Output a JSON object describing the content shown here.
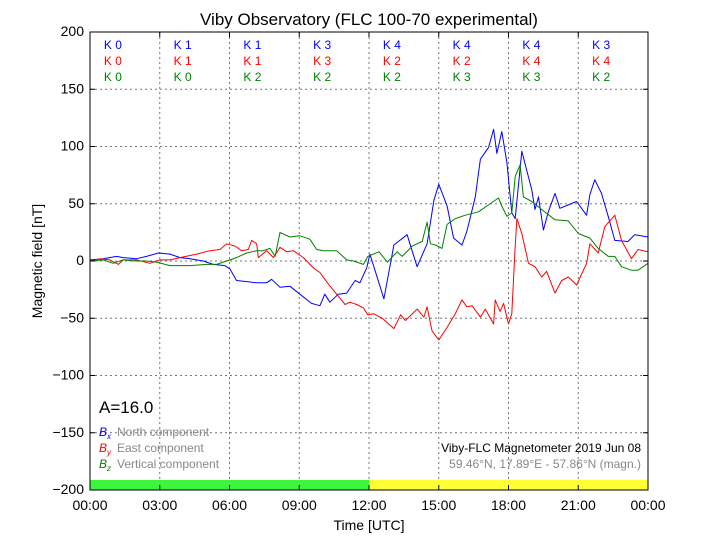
{
  "chart_data": {
    "type": "line",
    "title": "Viby Observatory (FLC 100-70 experimental)",
    "xlabel": "Time [UTC]",
    "ylabel": "Magnetic field [nT]",
    "xlim": [
      0,
      24
    ],
    "ylim": [
      -200,
      200
    ],
    "grid": true,
    "x_ticks": [
      0,
      3,
      6,
      9,
      12,
      15,
      18,
      21,
      24
    ],
    "x_tick_labels": [
      "00:00",
      "03:00",
      "06:00",
      "09:00",
      "12:00",
      "15:00",
      "18:00",
      "21:00",
      "00:00"
    ],
    "y_ticks": [
      -200,
      -150,
      -100,
      -50,
      0,
      50,
      100,
      150,
      200
    ],
    "y_tick_labels": [
      "−200",
      "−150",
      "−100",
      "−50",
      "0",
      "50",
      "100",
      "150",
      "200"
    ],
    "a_index": "A=16.0",
    "k_indices": {
      "north": [
        "K 0",
        "K 1",
        "K 1",
        "K 3",
        "K 4",
        "K 4",
        "K 4",
        "K 3"
      ],
      "east": [
        "K 0",
        "K 1",
        "K 1",
        "K 3",
        "K 2",
        "K 2",
        "K 4",
        "K 4"
      ],
      "vertical": [
        "K 0",
        "K 0",
        "K 2",
        "K 2",
        "K 2",
        "K 3",
        "K 3",
        "K 2"
      ]
    },
    "activity_bar": [
      {
        "from": 0,
        "to": 12,
        "color": "#3cf53c"
      },
      {
        "from": 12,
        "to": 24,
        "color": "#ffff33"
      }
    ],
    "legend": {
      "placement": "bottom-left",
      "entries": [
        {
          "symbol": "B",
          "sub": "x",
          "label": "North component"
        },
        {
          "symbol": "B",
          "sub": "y",
          "label": "East component"
        },
        {
          "symbol": "B",
          "sub": "z",
          "label": "Vertical component"
        }
      ]
    },
    "info": {
      "line1": "Viby-FLC Magnetometer 2019 Jun 08",
      "line2": "59.46°N, 17.89°E - 57.86°N (magn.)"
    },
    "series": [
      {
        "name": "North component",
        "color": "#0000ff",
        "points": [
          [
            0,
            1
          ],
          [
            0.57,
            2
          ],
          [
            1.15,
            4
          ],
          [
            1.43,
            3
          ],
          [
            2.0,
            2
          ],
          [
            2.43,
            4
          ],
          [
            2.94,
            7
          ],
          [
            3.44,
            6
          ],
          [
            3.87,
            3
          ],
          [
            4.3,
            2
          ],
          [
            4.87,
            0
          ],
          [
            5.3,
            -3
          ],
          [
            5.8,
            -4
          ],
          [
            6.02,
            -7
          ],
          [
            6.3,
            -17
          ],
          [
            6.74,
            -18
          ],
          [
            7.17,
            -19
          ],
          [
            7.6,
            -19
          ],
          [
            7.81,
            -16
          ],
          [
            8.17,
            -23
          ],
          [
            8.6,
            -22
          ],
          [
            9.03,
            -29
          ],
          [
            9.53,
            -37
          ],
          [
            9.89,
            -39
          ],
          [
            10.1,
            -29
          ],
          [
            10.32,
            -36
          ],
          [
            10.68,
            -29
          ],
          [
            11.04,
            -28
          ],
          [
            11.4,
            -17
          ],
          [
            11.61,
            -19
          ],
          [
            11.9,
            -6
          ],
          [
            12.04,
            6
          ],
          [
            12.64,
            -33
          ],
          [
            13.07,
            14
          ],
          [
            13.64,
            23
          ],
          [
            14.07,
            -5
          ],
          [
            14.5,
            15
          ],
          [
            14.79,
            53
          ],
          [
            15,
            67
          ],
          [
            15.36,
            48
          ],
          [
            15.64,
            20
          ],
          [
            16,
            14
          ],
          [
            16.21,
            26
          ],
          [
            16.57,
            56
          ],
          [
            16.79,
            89
          ],
          [
            17.14,
            99
          ],
          [
            17.36,
            115
          ],
          [
            17.5,
            94
          ],
          [
            17.71,
            113
          ],
          [
            17.93,
            86
          ],
          [
            18.14,
            42
          ],
          [
            18.29,
            37
          ],
          [
            18.57,
            96
          ],
          [
            19,
            62
          ],
          [
            19.14,
            45
          ],
          [
            19.29,
            56
          ],
          [
            19.5,
            27
          ],
          [
            19.71,
            43
          ],
          [
            20,
            59
          ],
          [
            20.21,
            46
          ],
          [
            20.57,
            49
          ],
          [
            20.93,
            52
          ],
          [
            21.36,
            40
          ],
          [
            21.5,
            58
          ],
          [
            21.71,
            71
          ],
          [
            22,
            59
          ],
          [
            22.29,
            39
          ],
          [
            22.57,
            18
          ],
          [
            23.14,
            17
          ],
          [
            23.43,
            23
          ],
          [
            24,
            21
          ]
        ]
      },
      {
        "name": "East component",
        "color": "#ff0000",
        "points": [
          [
            0,
            0
          ],
          [
            0.43,
            2
          ],
          [
            0.86,
            1
          ],
          [
            1.22,
            -3
          ],
          [
            1.43,
            1
          ],
          [
            2.0,
            1
          ],
          [
            2.58,
            -2
          ],
          [
            3.01,
            1
          ],
          [
            3.44,
            1
          ],
          [
            3.87,
            3
          ],
          [
            4.59,
            6
          ],
          [
            5.16,
            9
          ],
          [
            5.59,
            10
          ],
          [
            5.88,
            15
          ],
          [
            6.24,
            13
          ],
          [
            6.52,
            9
          ],
          [
            6.81,
            10
          ],
          [
            6.95,
            18
          ],
          [
            7.17,
            15
          ],
          [
            7.24,
            3
          ],
          [
            7.6,
            9
          ],
          [
            7.89,
            3
          ],
          [
            8.17,
            12
          ],
          [
            8.46,
            8
          ],
          [
            8.75,
            9
          ],
          [
            9.18,
            3
          ],
          [
            9.61,
            -6
          ],
          [
            9.89,
            -10
          ],
          [
            10.25,
            -20
          ],
          [
            10.61,
            -29
          ],
          [
            10.97,
            -38
          ],
          [
            11.18,
            -36
          ],
          [
            11.47,
            -38
          ],
          [
            11.76,
            -41
          ],
          [
            11.95,
            -47
          ],
          [
            12.2,
            -46
          ],
          [
            12.57,
            -50
          ],
          [
            13.07,
            -59
          ],
          [
            13.36,
            -47
          ],
          [
            13.57,
            -52
          ],
          [
            14.07,
            -42
          ],
          [
            14.36,
            -49
          ],
          [
            14.5,
            -40
          ],
          [
            14.71,
            -61
          ],
          [
            15,
            -69
          ],
          [
            15.36,
            -58
          ],
          [
            15.71,
            -46
          ],
          [
            16,
            -34
          ],
          [
            16.21,
            -40
          ],
          [
            16.43,
            -39
          ],
          [
            16.79,
            -49
          ],
          [
            17,
            -42
          ],
          [
            17.36,
            -55
          ],
          [
            17.43,
            -34
          ],
          [
            17.64,
            -44
          ],
          [
            17.79,
            -37
          ],
          [
            18,
            -55
          ],
          [
            18.14,
            -46
          ],
          [
            18.29,
            13
          ],
          [
            18.36,
            37
          ],
          [
            18.57,
            24
          ],
          [
            18.86,
            -2
          ],
          [
            19.14,
            -5
          ],
          [
            19.43,
            -14
          ],
          [
            19.64,
            -9
          ],
          [
            20,
            -28
          ],
          [
            20.29,
            -17
          ],
          [
            20.57,
            -14
          ],
          [
            20.93,
            -21
          ],
          [
            21.36,
            -2
          ],
          [
            21.5,
            15
          ],
          [
            21.86,
            7
          ],
          [
            22.14,
            30
          ],
          [
            22.57,
            40
          ],
          [
            22.86,
            18
          ],
          [
            23.29,
            2
          ],
          [
            23.57,
            10
          ],
          [
            24,
            8
          ]
        ]
      },
      {
        "name": "Vertical component",
        "color": "#008000",
        "points": [
          [
            0,
            0
          ],
          [
            0.57,
            1
          ],
          [
            1.0,
            -2
          ],
          [
            1.43,
            1
          ],
          [
            2.0,
            0
          ],
          [
            2.43,
            0
          ],
          [
            2.87,
            -1
          ],
          [
            3.44,
            -4
          ],
          [
            4.3,
            -4
          ],
          [
            5.02,
            -3
          ],
          [
            5.45,
            -3
          ],
          [
            5.88,
            0
          ],
          [
            6.3,
            3
          ],
          [
            6.74,
            7
          ],
          [
            7.17,
            9
          ],
          [
            7.46,
            9
          ],
          [
            7.74,
            11
          ],
          [
            7.96,
            4
          ],
          [
            8.17,
            25
          ],
          [
            8.6,
            21
          ],
          [
            9.03,
            22
          ],
          [
            9.46,
            19
          ],
          [
            9.75,
            10
          ],
          [
            10.04,
            9
          ],
          [
            10.61,
            9
          ],
          [
            11.04,
            1
          ],
          [
            11.33,
            0
          ],
          [
            11.76,
            -3
          ],
          [
            11.95,
            4
          ],
          [
            12.43,
            8
          ],
          [
            12.79,
            -1
          ],
          [
            13.21,
            8
          ],
          [
            13.43,
            4
          ],
          [
            13.86,
            13
          ],
          [
            14.29,
            17
          ],
          [
            14.5,
            34
          ],
          [
            14.64,
            15
          ],
          [
            14.86,
            14
          ],
          [
            15.14,
            11
          ],
          [
            15.36,
            32
          ],
          [
            15.71,
            37
          ],
          [
            16.14,
            40
          ],
          [
            16.71,
            43
          ],
          [
            17.14,
            49
          ],
          [
            17.57,
            55
          ],
          [
            17.71,
            48
          ],
          [
            17.93,
            39
          ],
          [
            18.14,
            42
          ],
          [
            18.29,
            74
          ],
          [
            18.5,
            84
          ],
          [
            18.64,
            56
          ],
          [
            19,
            52
          ],
          [
            19.43,
            45
          ],
          [
            20,
            36
          ],
          [
            20.57,
            35
          ],
          [
            21,
            24
          ],
          [
            21.5,
            20
          ],
          [
            21.86,
            11
          ],
          [
            22.29,
            4
          ],
          [
            22.57,
            4
          ],
          [
            22.86,
            -5
          ],
          [
            23.29,
            -8
          ],
          [
            23.57,
            -8
          ],
          [
            24,
            -2
          ]
        ]
      }
    ]
  }
}
